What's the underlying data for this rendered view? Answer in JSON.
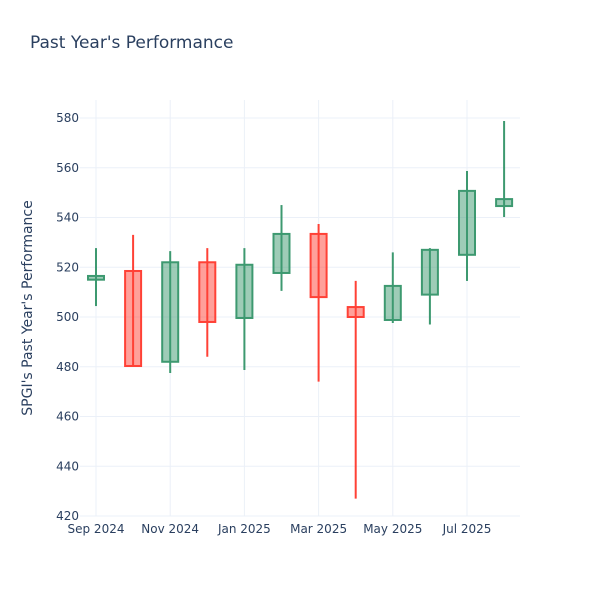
{
  "chart_data": {
    "type": "candlestick",
    "title": "Past Year's Performance",
    "xlabel": "",
    "ylabel": "SPGI's Past Year's Performance",
    "ylim": [
      418,
      587
    ],
    "yticks": [
      420,
      440,
      460,
      480,
      500,
      520,
      540,
      560,
      580
    ],
    "xticks": [
      {
        "label": "Sep 2024",
        "month": 0
      },
      {
        "label": "Nov 2024",
        "month": 2
      },
      {
        "label": "Jan 2025",
        "month": 4
      },
      {
        "label": "Mar 2025",
        "month": 6
      },
      {
        "label": "May 2025",
        "month": 8
      },
      {
        "label": "Jul 2025",
        "month": 10
      }
    ],
    "increasing_color": "#3d9970",
    "decreasing_color": "#ff4136",
    "candles": [
      {
        "month": 0,
        "open": 515,
        "high": 527.7,
        "low": 504.4,
        "close": 516.5
      },
      {
        "month": 1,
        "open": 518.5,
        "high": 533,
        "low": 480,
        "close": 480.3
      },
      {
        "month": 2,
        "open": 482,
        "high": 526.5,
        "low": 477.5,
        "close": 522
      },
      {
        "month": 3,
        "open": 522,
        "high": 527.7,
        "low": 484,
        "close": 498
      },
      {
        "month": 4,
        "open": 499.6,
        "high": 527.7,
        "low": 478.7,
        "close": 521
      },
      {
        "month": 5,
        "open": 517.7,
        "high": 545,
        "low": 510.5,
        "close": 533.4
      },
      {
        "month": 6,
        "open": 533.4,
        "high": 537.4,
        "low": 474,
        "close": 508
      },
      {
        "month": 7,
        "open": 504,
        "high": 514.5,
        "low": 427,
        "close": 500
      },
      {
        "month": 8,
        "open": 498.8,
        "high": 526,
        "low": 497.6,
        "close": 512.5
      },
      {
        "month": 9,
        "open": 509,
        "high": 527.7,
        "low": 497,
        "close": 527
      },
      {
        "month": 10,
        "open": 525,
        "high": 558.7,
        "low": 514.5,
        "close": 550.7
      },
      {
        "month": 11,
        "open": 544.6,
        "high": 578.8,
        "low": 540.2,
        "close": 547.4
      }
    ]
  }
}
